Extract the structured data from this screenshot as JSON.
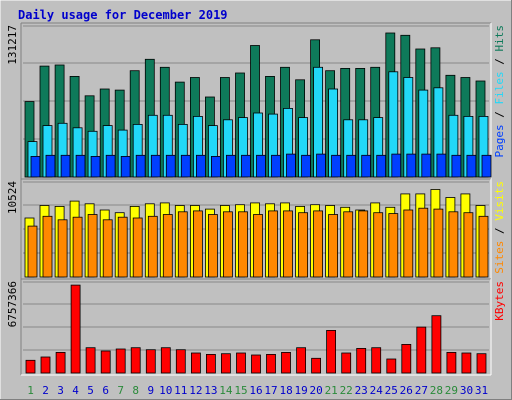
{
  "chart_data": [
    {
      "type": "bar",
      "title": "Daily usage for December 2019",
      "ymax_label": "131217",
      "ylim": [
        0,
        131217
      ],
      "ylabel_parts": [
        "Pages",
        "Files",
        "Hits"
      ],
      "categories": [
        "1",
        "2",
        "3",
        "4",
        "5",
        "6",
        "7",
        "8",
        "9",
        "10",
        "11",
        "12",
        "13",
        "14",
        "15",
        "16",
        "17",
        "18",
        "19",
        "20",
        "21",
        "22",
        "23",
        "24",
        "25",
        "26",
        "27",
        "28",
        "29",
        "30",
        "31"
      ],
      "weekend_days": [
        "1",
        "7",
        "8",
        "14",
        "15",
        "21",
        "22",
        "28",
        "29"
      ],
      "series": [
        {
          "name": "Hits",
          "color": "#0e7a5a",
          "values": [
            66000,
            97000,
            98000,
            88000,
            71000,
            77000,
            76000,
            93000,
            103000,
            96000,
            83000,
            87000,
            70000,
            87000,
            91000,
            115000,
            88000,
            96000,
            85000,
            120000,
            93000,
            95000,
            95000,
            96000,
            126000,
            124000,
            112000,
            113000,
            89000,
            87000,
            84000
          ]
        },
        {
          "name": "Files",
          "color": "#22d8f8",
          "values": [
            31000,
            45000,
            47000,
            43000,
            40000,
            45000,
            41000,
            46000,
            54000,
            54000,
            46000,
            53000,
            45000,
            50000,
            52000,
            56000,
            55000,
            60000,
            52000,
            96000,
            77000,
            50000,
            50000,
            52000,
            92000,
            87000,
            76000,
            78000,
            54000,
            53000,
            53000
          ]
        },
        {
          "name": "Pages",
          "color": "#003fff",
          "values": [
            18000,
            19000,
            19000,
            19000,
            18000,
            19000,
            18000,
            19000,
            19000,
            19000,
            19000,
            19000,
            18000,
            19000,
            19000,
            19000,
            19000,
            20000,
            19000,
            20000,
            19000,
            19000,
            19000,
            19000,
            20000,
            20000,
            20000,
            20000,
            19000,
            19000,
            19000
          ]
        }
      ]
    },
    {
      "type": "bar",
      "ymax_label": "10524",
      "ylim": [
        0,
        10524
      ],
      "ylabel_parts": [
        "Sites",
        "Visits"
      ],
      "categories": [
        "1",
        "2",
        "3",
        "4",
        "5",
        "6",
        "7",
        "8",
        "9",
        "10",
        "11",
        "12",
        "13",
        "14",
        "15",
        "16",
        "17",
        "18",
        "19",
        "20",
        "21",
        "22",
        "23",
        "24",
        "25",
        "26",
        "27",
        "28",
        "29",
        "30",
        "31"
      ],
      "series": [
        {
          "name": "Visits",
          "color": "#ffff00",
          "values": [
            6600,
            8000,
            7900,
            8500,
            8200,
            7500,
            7200,
            7900,
            8200,
            8300,
            8000,
            8000,
            7600,
            8000,
            8100,
            8300,
            8200,
            8300,
            7900,
            8100,
            8000,
            7800,
            7500,
            8300,
            7800,
            9300,
            9300,
            9800,
            8900,
            9300,
            8000
          ]
        },
        {
          "name": "Sites",
          "color": "#ff8800",
          "values": [
            5700,
            6800,
            6400,
            6700,
            7000,
            6400,
            6700,
            6600,
            6800,
            7000,
            7300,
            7400,
            7000,
            7300,
            7300,
            7000,
            7400,
            7400,
            7200,
            7400,
            7000,
            7300,
            7400,
            7200,
            7100,
            7500,
            7700,
            7600,
            7300,
            7200,
            6800
          ]
        }
      ]
    },
    {
      "type": "bar",
      "ymax_label": "6757366",
      "ylim": [
        0,
        6757366
      ],
      "ylabel_parts": [
        "KBytes"
      ],
      "categories": [
        "1",
        "2",
        "3",
        "4",
        "5",
        "6",
        "7",
        "8",
        "9",
        "10",
        "11",
        "12",
        "13",
        "14",
        "15",
        "16",
        "17",
        "18",
        "19",
        "20",
        "21",
        "22",
        "23",
        "24",
        "25",
        "26",
        "27",
        "28",
        "29",
        "30",
        "31"
      ],
      "series": [
        {
          "name": "KBytes",
          "color": "#ff0000",
          "values": [
            950000,
            1200000,
            1550000,
            6600000,
            1900000,
            1650000,
            1800000,
            1900000,
            1750000,
            1900000,
            1750000,
            1500000,
            1400000,
            1450000,
            1500000,
            1350000,
            1400000,
            1550000,
            1900000,
            1100000,
            3200000,
            1500000,
            1850000,
            1900000,
            1050000,
            2150000,
            3450000,
            4300000,
            1550000,
            1500000,
            1450000
          ]
        }
      ]
    }
  ],
  "colors": {
    "title": "#0000cc",
    "panel_bg": "#c0c0c0",
    "weekend_label": "#2a8a3a",
    "weekday_label": "#0000cc",
    "gridline": "#888888",
    "bar_outline": "#000000"
  }
}
